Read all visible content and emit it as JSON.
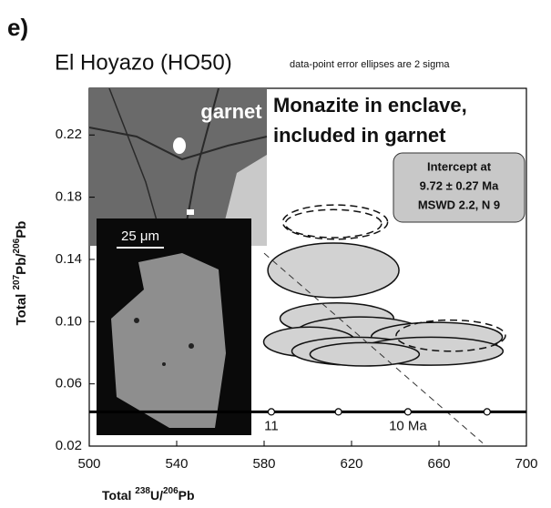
{
  "chart_data": {
    "type": "concordia",
    "panel_label": "e)",
    "title": "El Hoyazo (HO50)",
    "subtitle": "data-point error ellipses are 2 sigma",
    "xlabel": [
      "Total ",
      "238",
      "U/",
      "206",
      "Pb"
    ],
    "ylabel": [
      "Total ",
      "207",
      "Pb/",
      "206",
      "Pb"
    ],
    "xlim": [
      500,
      700
    ],
    "ylim": [
      0.02,
      0.25
    ],
    "xticks": [
      500,
      540,
      580,
      620,
      660,
      700
    ],
    "yticks": [
      0.02,
      0.06,
      {
        "value": 0.1,
        "label": "0.10"
      },
      0.14,
      0.18,
      0.22
    ],
    "annotation": [
      "Monazite in enclave,",
      "included in garnet"
    ],
    "intercept_box": [
      "Intercept at",
      "9.72 ± 0.27 Ma",
      "MSWD 2.2, N 9"
    ],
    "inset_labels": [
      "garnet",
      "25 μm"
    ],
    "ellipse_color": "#d2d2d2",
    "ellipses": [
      {
        "x": 612.5,
        "y": 0.164,
        "rx": 24,
        "ry": 0.011,
        "dashed": true
      },
      {
        "x": 611.7,
        "y": 0.163,
        "rx": 22,
        "ry": 0.009,
        "dashed": true
      },
      {
        "x": 611.7,
        "y": 0.133,
        "rx": 30,
        "ry": 0.0175,
        "dashed": false
      },
      {
        "x": 613.3,
        "y": 0.102,
        "rx": 26,
        "ry": 0.01,
        "dashed": false
      },
      {
        "x": 623.8,
        "y": 0.093,
        "rx": 29,
        "ry": 0.01,
        "dashed": false
      },
      {
        "x": 659,
        "y": 0.09,
        "rx": 30,
        "ry": 0.0095,
        "dashed": false
      },
      {
        "x": 600.8,
        "y": 0.087,
        "rx": 21,
        "ry": 0.0095,
        "dashed": false
      },
      {
        "x": 621.7,
        "y": 0.081,
        "rx": 29,
        "ry": 0.009,
        "dashed": false
      },
      {
        "x": 656.3,
        "y": 0.081,
        "rx": 33,
        "ry": 0.009,
        "dashed": false
      },
      {
        "x": 626,
        "y": 0.079,
        "rx": 25,
        "ry": 0.0075,
        "dashed": false
      },
      {
        "x": 665.4,
        "y": 0.091,
        "rx": 25,
        "ry": 0.01,
        "dashed": true
      }
    ],
    "regression": {
      "x": [
        580,
        680
      ],
      "y": [
        0.144,
        0.022
      ]
    },
    "concordia": {
      "x": [
        583.3,
        614,
        645.8,
        682
      ],
      "y": [
        0.042,
        0.042,
        0.042,
        0.042
      ],
      "age_labels": [
        "11",
        null,
        "10 Ma",
        null
      ]
    }
  }
}
